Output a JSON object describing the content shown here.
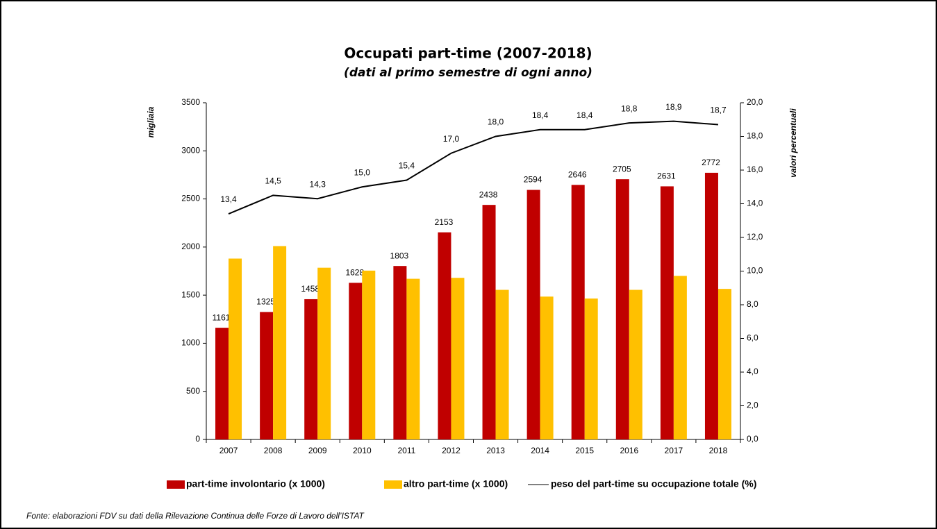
{
  "chart_data": {
    "type": "bar",
    "title": "Occupati part-time (2007-2018)",
    "subtitle": "(dati al primo semestre  di ogni anno)",
    "y_label": "migliaia",
    "y2_label": "valori percentuali",
    "source": "Fonte: elaborazioni FDV su dati della Rilevazione Continua delle Forze di Lavoro dell’ISTAT",
    "categories": [
      "2007",
      "2008",
      "2009",
      "2010",
      "2011",
      "2012",
      "2013",
      "2014",
      "2015",
      "2016",
      "2017",
      "2018"
    ],
    "series": [
      {
        "name": "part-time involontario (x 1000)",
        "type": "bar",
        "color": "#c00000",
        "show_labels": true,
        "values": [
          1161,
          1325,
          1458,
          1628,
          1803,
          2153,
          2438,
          2594,
          2646,
          2705,
          2631,
          2772
        ]
      },
      {
        "name": "altro part-time (x 1000)",
        "type": "bar",
        "color": "#ffc000",
        "show_labels": false,
        "values": [
          1880,
          2010,
          1785,
          1755,
          1670,
          1680,
          1555,
          1485,
          1465,
          1555,
          1700,
          1565
        ]
      },
      {
        "name": "peso del part-time su occupazione totale (%)",
        "type": "line",
        "axis": "y2",
        "color": "#000000",
        "show_labels": true,
        "values": [
          13.4,
          14.5,
          14.3,
          15.0,
          15.4,
          17.0,
          18.0,
          18.4,
          18.4,
          18.8,
          18.9,
          18.7
        ],
        "value_labels": [
          "13,4",
          "14,5",
          "14,3",
          "15,0",
          "15,4",
          "17,0",
          "18,0",
          "18,4",
          "18,4",
          "18,8",
          "18,9",
          "18,7"
        ]
      }
    ],
    "ylim": [
      0,
      3500
    ],
    "yticks": [
      0,
      500,
      1000,
      1500,
      2000,
      2500,
      3000,
      3500
    ],
    "y2lim": [
      0,
      20
    ],
    "y2ticks": [
      {
        "value": 0,
        "label": "0,0"
      },
      {
        "value": 2,
        "label": "2,0"
      },
      {
        "value": 4,
        "label": "4,0"
      },
      {
        "value": 6,
        "label": "6,0"
      },
      {
        "value": 8,
        "label": "8,0"
      },
      {
        "value": 10,
        "label": "10,0"
      },
      {
        "value": 12,
        "label": "12,0"
      },
      {
        "value": 14,
        "label": "14,0"
      },
      {
        "value": 16,
        "label": "16,0"
      },
      {
        "value": 18,
        "label": "18,0"
      },
      {
        "value": 20,
        "label": "20,0"
      }
    ],
    "grid": false,
    "legend": "bottom"
  }
}
